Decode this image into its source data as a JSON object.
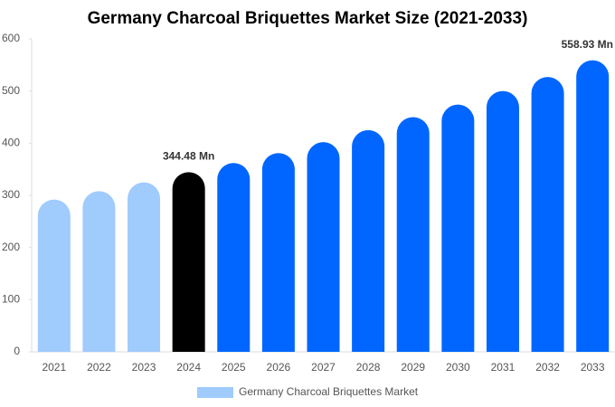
{
  "chart_data": {
    "type": "bar",
    "title": "Germany Charcoal Briquettes Market Size (2021-2033)",
    "categories": [
      "2021",
      "2022",
      "2023",
      "2024",
      "2025",
      "2026",
      "2027",
      "2028",
      "2029",
      "2030",
      "2031",
      "2032",
      "2033"
    ],
    "series": [
      {
        "name": "Germany Charcoal Briquettes Market",
        "color": "#9fcbfd",
        "values": [
          292,
          308,
          325,
          344.48,
          362,
          381,
          402,
          425,
          450,
          474,
          500,
          527,
          558.93
        ],
        "value_labels": [
          null,
          null,
          null,
          "344.48 Mn",
          null,
          null,
          null,
          null,
          null,
          null,
          null,
          null,
          "558.93 Mn"
        ],
        "colors": [
          "#9fcbfd",
          "#9fcbfd",
          "#9fcbfd",
          "#000000",
          "#0066ff",
          "#0066ff",
          "#0066ff",
          "#0066ff",
          "#0066ff",
          "#0066ff",
          "#0066ff",
          "#0066ff",
          "#0066ff"
        ]
      }
    ],
    "ylim": [
      0,
      600
    ],
    "yticks": [
      0,
      100,
      200,
      300,
      400,
      500,
      600
    ],
    "grid": false
  }
}
